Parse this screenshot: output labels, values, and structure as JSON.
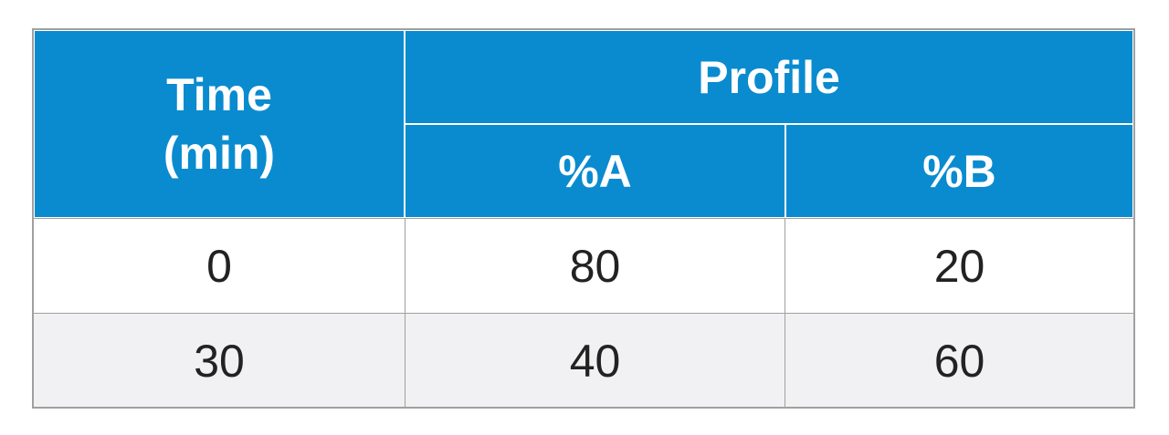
{
  "table": {
    "header": {
      "time": [
        "Time",
        "(min)"
      ],
      "profile": "Profile",
      "columns": [
        "%A",
        "%B"
      ]
    },
    "rows": [
      [
        0,
        80,
        20
      ],
      [
        30,
        40,
        60
      ]
    ]
  }
}
